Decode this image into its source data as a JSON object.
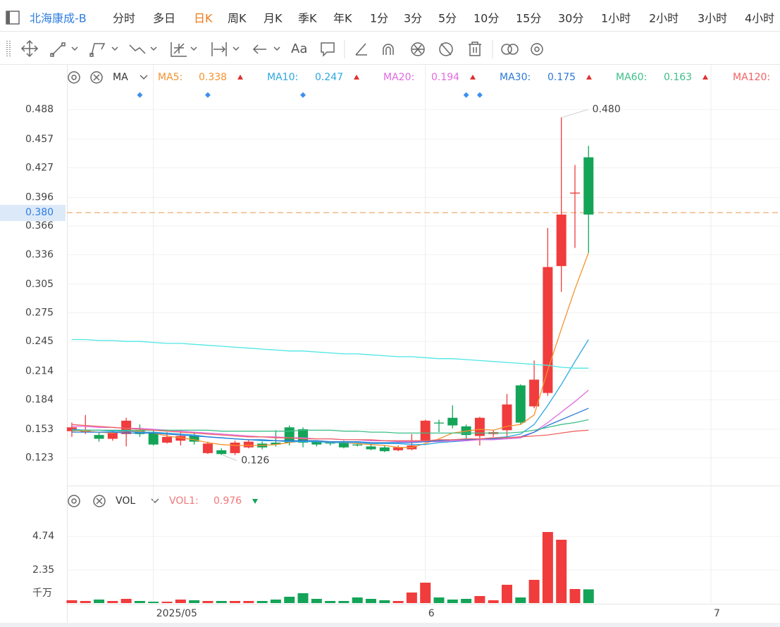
{
  "app": {
    "symbol": "北海康成-B",
    "tabs": [
      "分时",
      "多日",
      "日K",
      "周K",
      "月K",
      "季K",
      "年K",
      "1分",
      "3分",
      "5分",
      "10分",
      "15分",
      "30分",
      "1小时",
      "2小时",
      "3小时",
      "4小时"
    ],
    "active_tab": 2,
    "toolbar_text": "Aa"
  },
  "indicators": {
    "main": "MA",
    "volume": "VOL"
  },
  "chart_data": [
    {
      "type": "candlestick",
      "open": [
        0.151,
        0.15,
        0.147,
        0.143,
        0.148,
        0.152,
        0.15,
        0.139,
        0.141,
        0.146,
        0.128,
        0.131,
        0.128,
        0.134,
        0.138,
        0.139,
        0.155,
        0.153,
        0.14,
        0.139,
        0.14,
        0.137,
        0.135,
        0.134,
        0.131,
        0.132,
        0.14,
        0.16,
        0.165,
        0.156,
        0.146,
        0.148,
        0.152,
        0.199,
        0.177,
        0.191,
        0.324,
        0.4,
        0.438
      ],
      "high": [
        0.16,
        0.168,
        0.15,
        0.152,
        0.165,
        0.158,
        0.152,
        0.15,
        0.15,
        0.15,
        0.14,
        0.133,
        0.141,
        0.142,
        0.14,
        0.152,
        0.157,
        0.155,
        0.141,
        0.14,
        0.141,
        0.139,
        0.137,
        0.136,
        0.136,
        0.148,
        0.163,
        0.163,
        0.178,
        0.158,
        0.166,
        0.152,
        0.19,
        0.2,
        0.225,
        0.364,
        0.48,
        0.43,
        0.45
      ],
      "low": [
        0.145,
        0.148,
        0.14,
        0.141,
        0.135,
        0.145,
        0.136,
        0.138,
        0.136,
        0.137,
        0.127,
        0.126,
        0.126,
        0.133,
        0.132,
        0.135,
        0.136,
        0.134,
        0.135,
        0.136,
        0.133,
        0.135,
        0.131,
        0.129,
        0.13,
        0.131,
        0.139,
        0.15,
        0.154,
        0.143,
        0.136,
        0.145,
        0.145,
        0.158,
        0.175,
        0.188,
        0.297,
        0.343,
        0.338
      ],
      "close": [
        0.155,
        0.152,
        0.143,
        0.15,
        0.162,
        0.148,
        0.137,
        0.145,
        0.146,
        0.14,
        0.138,
        0.127,
        0.139,
        0.14,
        0.134,
        0.137,
        0.139,
        0.139,
        0.137,
        0.138,
        0.134,
        0.136,
        0.132,
        0.13,
        0.134,
        0.136,
        0.162,
        0.1595,
        0.157,
        0.147,
        0.165,
        0.15,
        0.179,
        0.16,
        0.205,
        0.323,
        0.378,
        0.401,
        0.378
      ],
      "up_color": "#f03c3c",
      "down_color": "#14a458",
      "series": [
        {
          "name": "MA5:",
          "color": "#f5922f",
          "values": [
            0.152,
            0.151,
            0.15,
            0.149,
            0.151,
            0.151,
            0.149,
            0.146,
            0.144,
            0.142,
            0.139,
            0.137,
            0.136,
            0.136,
            0.136,
            0.137,
            0.139,
            0.141,
            0.141,
            0.14,
            0.139,
            0.138,
            0.137,
            0.136,
            0.134,
            0.134,
            0.138,
            0.143,
            0.149,
            0.151,
            0.153,
            0.152,
            0.156,
            0.158,
            0.168,
            0.215,
            0.258,
            0.3,
            0.338
          ]
        },
        {
          "name": "MA10:",
          "color": "#2ba8e0",
          "values": [
            0.153,
            0.152,
            0.152,
            0.151,
            0.151,
            0.15,
            0.15,
            0.149,
            0.148,
            0.147,
            0.145,
            0.144,
            0.143,
            0.142,
            0.141,
            0.141,
            0.14,
            0.14,
            0.14,
            0.139,
            0.139,
            0.139,
            0.138,
            0.138,
            0.138,
            0.137,
            0.137,
            0.139,
            0.14,
            0.141,
            0.143,
            0.144,
            0.145,
            0.148,
            0.158,
            0.178,
            0.2,
            0.224,
            0.247
          ]
        },
        {
          "name": "MA20:",
          "color": "#e06ae0",
          "values": [
            0.156,
            0.156,
            0.155,
            0.155,
            0.154,
            0.154,
            0.153,
            0.152,
            0.151,
            0.15,
            0.149,
            0.148,
            0.147,
            0.146,
            0.145,
            0.145,
            0.144,
            0.144,
            0.143,
            0.143,
            0.142,
            0.142,
            0.141,
            0.141,
            0.14,
            0.14,
            0.14,
            0.14,
            0.141,
            0.141,
            0.142,
            0.142,
            0.143,
            0.144,
            0.15,
            0.16,
            0.171,
            0.182,
            0.194
          ]
        },
        {
          "name": "MA30:",
          "color": "#2b78d8",
          "values": [
            0.15,
            0.15,
            0.15,
            0.15,
            0.149,
            0.149,
            0.149,
            0.148,
            0.147,
            0.146,
            0.145,
            0.144,
            0.143,
            0.142,
            0.142,
            0.141,
            0.141,
            0.141,
            0.141,
            0.14,
            0.14,
            0.14,
            0.139,
            0.139,
            0.139,
            0.139,
            0.14,
            0.141,
            0.142,
            0.142,
            0.143,
            0.143,
            0.144,
            0.145,
            0.15,
            0.157,
            0.163,
            0.169,
            0.175
          ]
        },
        {
          "name": "MA60:",
          "color": "#3cbf88",
          "values": [
            0.152,
            0.152,
            0.152,
            0.152,
            0.152,
            0.152,
            0.152,
            0.152,
            0.152,
            0.152,
            0.152,
            0.151,
            0.151,
            0.151,
            0.151,
            0.151,
            0.151,
            0.152,
            0.152,
            0.152,
            0.151,
            0.151,
            0.15,
            0.15,
            0.149,
            0.149,
            0.149,
            0.149,
            0.149,
            0.149,
            0.149,
            0.149,
            0.149,
            0.15,
            0.152,
            0.155,
            0.158,
            0.16,
            0.163
          ]
        },
        {
          "name": "MA120:",
          "color": "#f06262",
          "values": [
            0.158,
            0.157,
            0.156,
            0.155,
            0.154,
            0.153,
            0.152,
            0.151,
            0.15,
            0.149,
            0.148,
            0.147,
            0.146,
            0.145,
            0.145,
            0.144,
            0.144,
            0.143,
            0.143,
            0.143,
            0.142,
            0.142,
            0.142,
            0.141,
            0.141,
            0.141,
            0.141,
            0.142,
            0.142,
            0.143,
            0.143,
            0.144,
            0.144,
            0.145,
            0.146,
            0.147,
            0.149,
            0.151,
            0.152
          ]
        },
        {
          "color": "#4fe6e6",
          "values": [
            0.247,
            0.247,
            0.246,
            0.246,
            0.245,
            0.245,
            0.244,
            0.243,
            0.243,
            0.242,
            0.241,
            0.24,
            0.239,
            0.238,
            0.237,
            0.236,
            0.235,
            0.235,
            0.234,
            0.233,
            0.232,
            0.232,
            0.231,
            0.23,
            0.229,
            0.229,
            0.228,
            0.227,
            0.227,
            0.226,
            0.225,
            0.224,
            0.223,
            0.222,
            0.221,
            0.22,
            0.218,
            0.217,
            0.217
          ]
        }
      ],
      "ylim": [
        0.094,
        0.535
      ],
      "yticks": [
        0.488,
        0.457,
        0.427,
        0.396,
        0.366,
        0.336,
        0.305,
        0.275,
        0.245,
        0.214,
        0.184,
        0.153,
        0.123
      ],
      "xlim": [
        -0.36,
        52.08
      ],
      "xticks": [
        {
          "value": 6,
          "label": "2025/05"
        },
        {
          "value": 26,
          "label": "6"
        },
        {
          "value": 47,
          "label": "7"
        }
      ],
      "grid": true,
      "last_price": {
        "value": 0.38,
        "label": "0.380"
      },
      "annotations": [
        {
          "text": "0.480",
          "index": 36
        },
        {
          "text": "0.126",
          "index": 11
        }
      ],
      "event_markers": [
        5,
        10,
        17,
        29,
        30
      ]
    },
    {
      "type": "bar",
      "series": [
        {
          "name": "VOL1:",
          "color": "#f07878",
          "values": [
            0.2,
            0.15,
            0.25,
            0.15,
            0.3,
            0.15,
            0.1,
            0.1,
            0.25,
            0.2,
            0.15,
            0.15,
            0.15,
            0.15,
            0.15,
            0.25,
            0.45,
            0.7,
            0.3,
            0.15,
            0.15,
            0.4,
            0.3,
            0.2,
            0.15,
            0.75,
            1.45,
            0.4,
            0.25,
            0.3,
            0.5,
            0.2,
            1.3,
            0.4,
            1.65,
            5.05,
            4.5,
            1.0,
            0.976
          ]
        }
      ],
      "ylim": [
        0,
        6.2
      ],
      "yticks": [
        2.35,
        4.74
      ],
      "y_unit": "千万"
    }
  ]
}
